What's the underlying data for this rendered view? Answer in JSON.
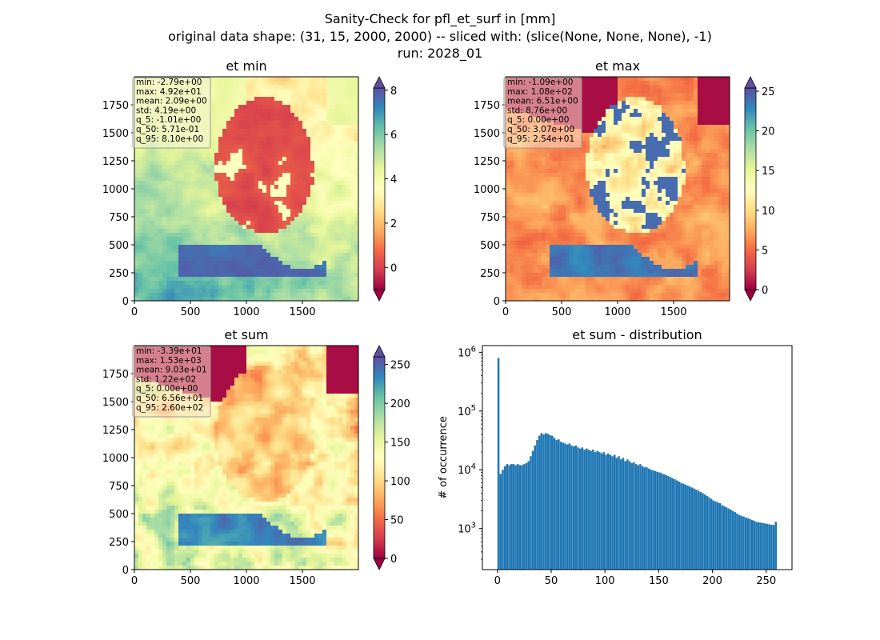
{
  "figure": {
    "title_lines": [
      "Sanity-Check for pfl_et_surf in [mm]",
      "original data shape: (31, 15, 2000, 2000) -- sliced with: (slice(None, None, None), -1)",
      "run: 2028_01"
    ]
  },
  "chart_data": [
    {
      "type": "heatmap",
      "title": "et min",
      "x_ticks": [
        0,
        500,
        1000,
        1500
      ],
      "y_ticks": [
        0,
        250,
        500,
        750,
        1000,
        1250,
        1500,
        1750
      ],
      "xlim": [
        0,
        2000
      ],
      "ylim": [
        0,
        2000
      ],
      "colormap": "Spectral",
      "colorbar": {
        "ticks": [
          0,
          2,
          4,
          6,
          8
        ],
        "vmin": -1.0,
        "vmax": 8.1,
        "extend": "both"
      },
      "stats": [
        "min: -2.79e+00",
        "max: 4.92e+01",
        "mean: 2.09e+00",
        "std: 4.19e+00",
        "q_5: -1.01e+00",
        "q_50: 5.71e-01",
        "q_95: 8.10e+00"
      ]
    },
    {
      "type": "heatmap",
      "title": "et max",
      "x_ticks": [
        0,
        500,
        1000,
        1500
      ],
      "y_ticks": [
        0,
        250,
        500,
        750,
        1000,
        1250,
        1500,
        1750
      ],
      "xlim": [
        0,
        2000
      ],
      "ylim": [
        0,
        2000
      ],
      "colormap": "Spectral",
      "colorbar": {
        "ticks": [
          0,
          5,
          10,
          15,
          20,
          25
        ],
        "vmin": 0,
        "vmax": 25.4,
        "extend": "both"
      },
      "stats": [
        "min: -1.09e+00",
        "max: 1.08e+02",
        "mean: 6.51e+00",
        "std: 8.76e+00",
        "q_5: 0.00e+00",
        "q_50: 3.07e+00",
        "q_95: 2.54e+01"
      ]
    },
    {
      "type": "heatmap",
      "title": "et sum",
      "x_ticks": [
        0,
        500,
        1000,
        1500
      ],
      "y_ticks": [
        0,
        250,
        500,
        750,
        1000,
        1250,
        1500,
        1750
      ],
      "xlim": [
        0,
        2000
      ],
      "ylim": [
        0,
        2000
      ],
      "colormap": "Spectral",
      "colorbar": {
        "ticks": [
          0,
          50,
          100,
          150,
          200,
          250
        ],
        "vmin": 0,
        "vmax": 260,
        "extend": "both"
      },
      "stats": [
        "min: -3.39e+01",
        "max: 1.53e+03",
        "mean: 9.03e+01",
        "std: 1.22e+02",
        "q_5: 0.00e+00",
        "q_50: 6.56e+01",
        "q_95: 2.60e+02"
      ]
    },
    {
      "type": "bar",
      "title": "et sum - distribution",
      "xlabel": "",
      "ylabel": "# of occurrence",
      "yscale": "log",
      "x_ticks": [
        0,
        50,
        100,
        150,
        200,
        250
      ],
      "y_tick_exponents": [
        3,
        4,
        5,
        6
      ],
      "xlim": [
        -14,
        274
      ],
      "ylim": [
        200,
        1300000
      ],
      "bin_width": 2,
      "bin_starts": [
        0,
        2,
        4,
        6,
        8,
        10,
        12,
        14,
        16,
        18,
        20,
        22,
        24,
        26,
        28,
        30,
        32,
        34,
        36,
        38,
        40,
        42,
        44,
        46,
        48,
        50,
        52,
        54,
        56,
        58,
        60,
        62,
        64,
        66,
        68,
        70,
        72,
        74,
        76,
        78,
        80,
        82,
        84,
        86,
        88,
        90,
        92,
        94,
        96,
        98,
        100,
        102,
        104,
        106,
        108,
        110,
        112,
        114,
        116,
        118,
        120,
        122,
        124,
        126,
        128,
        130,
        132,
        134,
        136,
        138,
        140,
        142,
        144,
        146,
        148,
        150,
        152,
        154,
        156,
        158,
        160,
        162,
        164,
        166,
        168,
        170,
        172,
        174,
        176,
        178,
        180,
        182,
        184,
        186,
        188,
        190,
        192,
        194,
        196,
        198,
        200,
        202,
        204,
        206,
        208,
        210,
        212,
        214,
        216,
        218,
        220,
        222,
        224,
        226,
        228,
        230,
        232,
        234,
        236,
        238,
        240,
        242,
        244,
        246,
        248,
        250,
        252,
        254,
        256,
        258
      ],
      "values": [
        800000,
        8500,
        10000,
        11500,
        12500,
        12000,
        12500,
        12500,
        12000,
        12500,
        12000,
        12000,
        12500,
        13000,
        14000,
        17000,
        21000,
        26000,
        32000,
        38000,
        42000,
        40000,
        42000,
        41000,
        39000,
        38000,
        35000,
        32000,
        33000,
        30000,
        29000,
        28000,
        27000,
        28000,
        26000,
        25000,
        26000,
        24000,
        23000,
        24000,
        22000,
        23000,
        22000,
        21000,
        22000,
        20000,
        21000,
        20000,
        19000,
        20000,
        18000,
        19000,
        18000,
        17000,
        18000,
        16000,
        17000,
        15000,
        16000,
        14000,
        15000,
        14000,
        13000,
        13500,
        12500,
        12000,
        12500,
        11500,
        11000,
        11000,
        10500,
        10000,
        9800,
        9500,
        9200,
        9000,
        8700,
        8400,
        8100,
        7800,
        7500,
        7200,
        6900,
        6600,
        6300,
        6000,
        5800,
        5600,
        5400,
        5200,
        5000,
        4800,
        4600,
        4400,
        4200,
        4000,
        3800,
        3600,
        3400,
        3200,
        3000,
        2900,
        2800,
        2700,
        2500,
        2400,
        2300,
        2200,
        2100,
        2000,
        1900,
        1800,
        1700,
        1650,
        1600,
        1550,
        1500,
        1450,
        1400,
        1350,
        1300,
        1280,
        1260,
        1240,
        1220,
        1200,
        1180,
        1160,
        1150,
        1300
      ]
    }
  ],
  "colors": {
    "bar": "#1f77b4"
  },
  "cmap_stops": [
    "#9e0142",
    "#d53e4f",
    "#f46d43",
    "#fdae61",
    "#fee08b",
    "#ffffbf",
    "#e6f598",
    "#abdda4",
    "#66c2a5",
    "#3288bd",
    "#5e4fa2"
  ]
}
